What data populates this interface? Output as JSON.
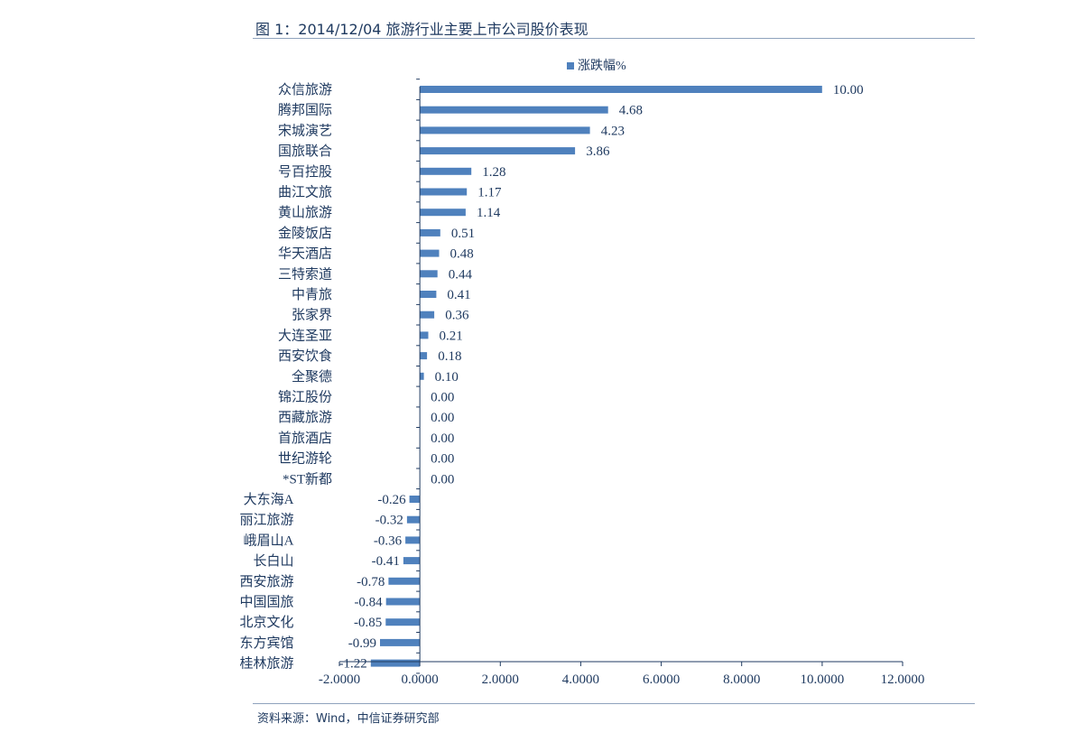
{
  "figure_title": "图 1：2014/12/04 旅游行业主要上市公司股价表现",
  "source_note": "资料来源：Wind，中信证券研究部",
  "colors": {
    "bar": "#4f81bd",
    "axis": "#1f3a60",
    "text": "#1f3a60"
  },
  "chart_data": {
    "type": "bar",
    "orientation": "horizontal",
    "title": "",
    "legend": {
      "position": "top-center",
      "entries": [
        "涨跌幅%"
      ]
    },
    "series": [
      {
        "name": "涨跌幅%",
        "values": [
          10.0,
          4.68,
          4.23,
          3.86,
          1.28,
          1.17,
          1.14,
          0.51,
          0.48,
          0.44,
          0.41,
          0.36,
          0.21,
          0.18,
          0.1,
          0.0,
          0.0,
          0.0,
          0.0,
          0.0,
          -0.26,
          -0.32,
          -0.36,
          -0.41,
          -0.78,
          -0.84,
          -0.85,
          -0.99,
          -1.22
        ]
      }
    ],
    "categories": [
      "众信旅游",
      "腾邦国际",
      "宋城演艺",
      "国旅联合",
      "号百控股",
      "曲江文旅",
      "黄山旅游",
      "金陵饭店",
      "华天酒店",
      "三特索道",
      "中青旅",
      "张家界",
      "大连圣亚",
      "西安饮食",
      "全聚德",
      "锦江股份",
      "西藏旅游",
      "首旅酒店",
      "世纪游轮",
      "*ST新都",
      "大东海A",
      "丽江旅游",
      "峨眉山A",
      "长白山",
      "西安旅游",
      "中国国旅",
      "北京文化",
      "东方宾馆",
      "桂林旅游"
    ],
    "data_labels": [
      "10.00",
      "4.68",
      "4.23",
      "3.86",
      "1.28",
      "1.17",
      "1.14",
      "0.51",
      "0.48",
      "0.44",
      "0.41",
      "0.36",
      "0.21",
      "0.18",
      "0.10",
      "0.00",
      "0.00",
      "0.00",
      "0.00",
      "0.00",
      "-0.26",
      "-0.32",
      "-0.36",
      "-0.41",
      "-0.78",
      "-0.84",
      "-0.85",
      "-0.99",
      "-1.22"
    ],
    "xlim": [
      -2,
      12
    ],
    "x_ticks": [
      -2,
      0,
      2,
      4,
      6,
      8,
      10,
      12
    ],
    "x_tick_labels": [
      "-2.0000",
      "0.0000",
      "2.0000",
      "4.0000",
      "6.0000",
      "8.0000",
      "10.0000",
      "12.0000"
    ],
    "grid": false,
    "xlabel": "",
    "ylabel": ""
  }
}
